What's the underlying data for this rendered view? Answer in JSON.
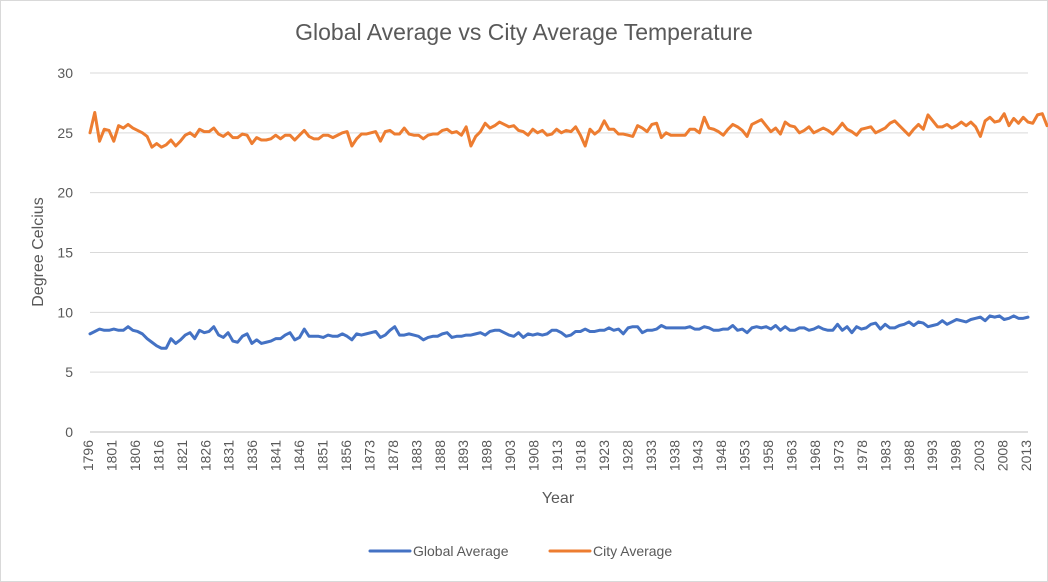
{
  "chart_data": {
    "type": "line",
    "title": "Global Average vs City Average Temperature",
    "xlabel": "Year",
    "ylabel": "Degree Celcius",
    "ylim": [
      0,
      30
    ],
    "y_ticks": [
      0,
      5,
      10,
      15,
      20,
      25,
      30
    ],
    "x_tick_labels": [
      "1796",
      "1801",
      "1806",
      "1816",
      "1821",
      "1826",
      "1831",
      "1836",
      "1841",
      "1846",
      "1851",
      "1856",
      "1873",
      "1878",
      "1883",
      "1888",
      "1893",
      "1898",
      "1903",
      "1908",
      "1913",
      "1918",
      "1923",
      "1928",
      "1933",
      "1938",
      "1943",
      "1948",
      "1953",
      "1958",
      "1963",
      "1968",
      "1973",
      "1978",
      "1983",
      "1988",
      "1993",
      "1998",
      "2003",
      "2008",
      "2013"
    ],
    "grid": "horizontal",
    "legend_position": "bottom",
    "series": [
      {
        "name": "Global Average",
        "color": "#4472c4",
        "values": [
          8.2,
          8.4,
          8.6,
          8.5,
          8.5,
          8.6,
          8.5,
          8.5,
          8.8,
          8.5,
          8.4,
          8.2,
          7.8,
          7.5,
          7.2,
          7.0,
          7.0,
          7.8,
          7.4,
          7.7,
          8.1,
          8.3,
          7.8,
          8.5,
          8.3,
          8.4,
          8.8,
          8.1,
          7.9,
          8.3,
          7.6,
          7.5,
          8.0,
          8.2,
          7.4,
          7.7,
          7.4,
          7.5,
          7.6,
          7.8,
          7.8,
          8.1,
          8.3,
          7.7,
          7.9,
          8.6,
          8.0,
          8.0,
          8.0,
          7.9,
          8.1,
          8.0,
          8.0,
          8.2,
          8.0,
          7.7,
          8.2,
          8.1,
          8.2,
          8.3,
          8.4,
          7.9,
          8.1,
          8.5,
          8.8,
          8.1,
          8.1,
          8.2,
          8.1,
          8.0,
          7.7,
          7.9,
          8.0,
          8.0,
          8.2,
          8.3,
          7.9,
          8.0,
          8.0,
          8.1,
          8.1,
          8.2,
          8.3,
          8.1,
          8.4,
          8.5,
          8.5,
          8.3,
          8.1,
          8.0,
          8.3,
          7.9,
          8.2,
          8.1,
          8.2,
          8.1,
          8.2,
          8.5,
          8.5,
          8.3,
          8.0,
          8.1,
          8.4,
          8.4,
          8.6,
          8.4,
          8.4,
          8.5,
          8.5,
          8.7,
          8.5,
          8.6,
          8.2,
          8.7,
          8.8,
          8.8,
          8.3,
          8.5,
          8.5,
          8.6,
          8.9,
          8.7,
          8.7,
          8.7,
          8.7,
          8.7,
          8.8,
          8.6,
          8.6,
          8.8,
          8.7,
          8.5,
          8.5,
          8.6,
          8.6,
          8.9,
          8.5,
          8.6,
          8.3,
          8.7,
          8.8,
          8.7,
          8.8,
          8.6,
          8.9,
          8.5,
          8.8,
          8.5,
          8.5,
          8.7,
          8.7,
          8.5,
          8.6,
          8.8,
          8.6,
          8.5,
          8.5,
          9.0,
          8.5,
          8.8,
          8.3,
          8.8,
          8.6,
          8.7,
          9.0,
          9.1,
          8.6,
          9.0,
          8.7,
          8.7,
          8.9,
          9.0,
          9.2,
          8.9,
          9.2,
          9.1,
          8.8,
          8.9,
          9.0,
          9.3,
          9.0,
          9.2,
          9.4,
          9.3,
          9.2,
          9.4,
          9.5,
          9.6,
          9.3,
          9.7,
          9.6,
          9.7,
          9.4,
          9.5,
          9.7,
          9.5,
          9.5,
          9.6
        ]
      },
      {
        "name": "City Average",
        "color": "#ed7d31",
        "values": [
          25.0,
          26.7,
          24.3,
          25.3,
          25.2,
          24.3,
          25.6,
          25.4,
          25.7,
          25.4,
          25.2,
          25.0,
          24.7,
          23.8,
          24.1,
          23.8,
          24.0,
          24.4,
          23.9,
          24.3,
          24.8,
          25.0,
          24.7,
          25.3,
          25.1,
          25.1,
          25.4,
          24.9,
          24.7,
          25.0,
          24.6,
          24.6,
          24.9,
          24.8,
          24.1,
          24.6,
          24.4,
          24.4,
          24.5,
          24.8,
          24.5,
          24.8,
          24.8,
          24.4,
          24.8,
          25.2,
          24.7,
          24.5,
          24.5,
          24.8,
          24.8,
          24.6,
          24.8,
          25.0,
          25.1,
          23.9,
          24.5,
          24.9,
          24.9,
          25.0,
          25.1,
          24.3,
          25.1,
          25.2,
          24.9,
          24.9,
          25.4,
          24.9,
          24.8,
          24.8,
          24.5,
          24.8,
          24.9,
          24.9,
          25.2,
          25.3,
          25.0,
          25.1,
          24.8,
          25.5,
          23.9,
          24.7,
          25.1,
          25.8,
          25.4,
          25.6,
          25.9,
          25.7,
          25.5,
          25.6,
          25.2,
          25.1,
          24.8,
          25.3,
          25.0,
          25.2,
          24.8,
          24.9,
          25.3,
          25.0,
          25.2,
          25.1,
          25.5,
          24.8,
          23.9,
          25.3,
          24.9,
          25.2,
          26.0,
          25.3,
          25.3,
          24.9,
          24.9,
          24.8,
          24.7,
          25.6,
          25.4,
          25.1,
          25.7,
          25.8,
          24.6,
          25.0,
          24.8,
          24.8,
          24.8,
          24.8,
          25.3,
          25.3,
          25.0,
          26.3,
          25.4,
          25.3,
          25.1,
          24.8,
          25.3,
          25.7,
          25.5,
          25.2,
          24.7,
          25.7,
          25.9,
          26.1,
          25.6,
          25.1,
          25.4,
          24.9,
          25.9,
          25.6,
          25.5,
          25.0,
          25.2,
          25.5,
          25.0,
          25.2,
          25.4,
          25.2,
          24.9,
          25.3,
          25.8,
          25.3,
          25.1,
          24.8,
          25.3,
          25.4,
          25.5,
          25.0,
          25.2,
          25.4,
          25.8,
          26.0,
          25.6,
          25.2,
          24.8,
          25.3,
          25.7,
          25.3,
          26.5,
          26.0,
          25.5,
          25.5,
          25.7,
          25.4,
          25.6,
          25.9,
          25.6,
          25.9,
          25.5,
          24.7,
          26.0,
          26.3,
          25.9,
          26.0,
          26.6,
          25.6,
          26.2,
          25.8,
          26.3,
          25.9,
          25.8,
          26.5,
          26.6,
          25.6,
          25.8,
          26.7
        ]
      }
    ]
  }
}
